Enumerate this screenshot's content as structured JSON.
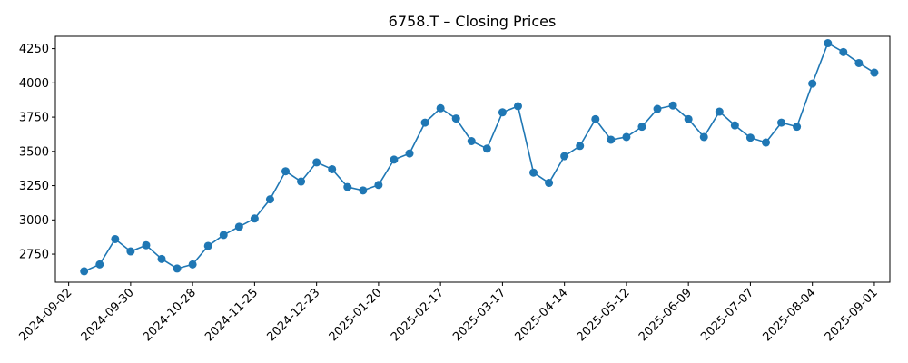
{
  "chart_data": {
    "type": "line",
    "title": "6758.T – Closing Prices",
    "xlabel": "",
    "ylabel": "",
    "grid": false,
    "legend": "none",
    "color": "#1f77b4",
    "marker": "circle",
    "xlim": [
      "2024-08-27",
      "2025-09-08"
    ],
    "ylim": [
      2545,
      4340
    ],
    "x_ticks": [
      "2024-09-02",
      "2024-09-30",
      "2024-10-28",
      "2024-11-25",
      "2024-12-23",
      "2025-01-20",
      "2025-02-17",
      "2025-03-17",
      "2025-04-14",
      "2025-05-12",
      "2025-06-09",
      "2025-07-07",
      "2025-08-04",
      "2025-09-01"
    ],
    "y_ticks": [
      2750,
      3000,
      3250,
      3500,
      3750,
      4000,
      4250
    ],
    "series": [
      {
        "x": [
          "2024-09-09",
          "2024-09-16",
          "2024-09-23",
          "2024-09-30",
          "2024-10-07",
          "2024-10-14",
          "2024-10-21",
          "2024-10-28",
          "2024-11-04",
          "2024-11-11",
          "2024-11-18",
          "2024-11-25",
          "2024-12-02",
          "2024-12-09",
          "2024-12-16",
          "2024-12-23",
          "2024-12-30",
          "2025-01-06",
          "2025-01-13",
          "2025-01-20",
          "2025-01-27",
          "2025-02-03",
          "2025-02-10",
          "2025-02-17",
          "2025-02-24",
          "2025-03-03",
          "2025-03-10",
          "2025-03-17",
          "2025-03-24",
          "2025-03-31",
          "2025-04-07",
          "2025-04-14",
          "2025-04-21",
          "2025-04-28",
          "2025-05-05",
          "2025-05-12",
          "2025-05-19",
          "2025-05-26",
          "2025-06-02",
          "2025-06-09",
          "2025-06-16",
          "2025-06-23",
          "2025-06-30",
          "2025-07-07",
          "2025-07-14",
          "2025-07-21",
          "2025-07-28",
          "2025-08-04",
          "2025-08-11",
          "2025-08-18",
          "2025-08-25",
          "2025-09-01"
        ],
        "values": [
          2625,
          2675,
          2860,
          2770,
          2815,
          2715,
          2645,
          2675,
          2810,
          2890,
          2950,
          3010,
          3150,
          3355,
          3280,
          3420,
          3370,
          3240,
          3215,
          3255,
          3440,
          3485,
          3710,
          3815,
          3740,
          3575,
          3520,
          3785,
          3830,
          3345,
          3270,
          3465,
          3540,
          3735,
          3585,
          3605,
          3680,
          3810,
          3835,
          3735,
          3605,
          3790,
          3690,
          3600,
          3565,
          3710,
          3680,
          3995,
          4290,
          4225,
          4145,
          4075
        ]
      }
    ]
  }
}
